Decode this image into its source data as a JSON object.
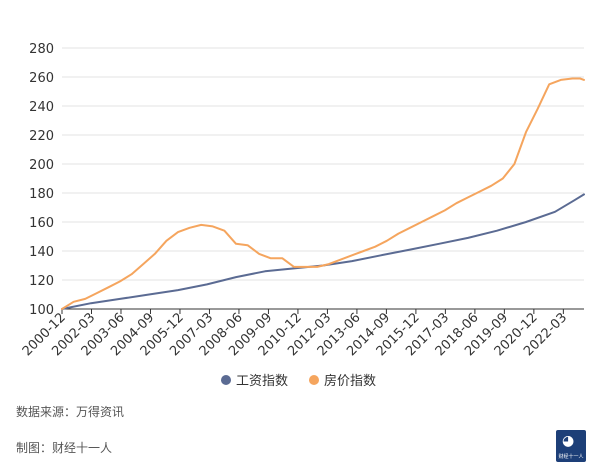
{
  "chart_data": {
    "type": "line",
    "title": "",
    "xlabel": "",
    "ylabel": "",
    "ylim": [
      100,
      280
    ],
    "yticks": [
      100,
      120,
      140,
      160,
      180,
      200,
      220,
      240,
      260,
      280
    ],
    "grid": true,
    "legend_position": "bottom-center",
    "x_tick_labels": [
      "2000-12",
      "2002-03",
      "2003-06",
      "2004-09",
      "2005-12",
      "2007-03",
      "2008-06",
      "2009-09",
      "2010-12",
      "2012-03",
      "2013-06",
      "2014-09",
      "2015-12",
      "2017-03",
      "2018-06",
      "2019-09",
      "2020-12",
      "2022-03"
    ],
    "x_range": [
      0,
      270
    ],
    "series": [
      {
        "name": "工资指数",
        "color": "#5b6b93",
        "x": [
          0,
          15,
          30,
          45,
          60,
          75,
          90,
          105,
          120,
          135,
          150,
          165,
          180,
          195,
          210,
          225,
          240,
          255,
          265,
          270
        ],
        "values": [
          100,
          104,
          107,
          110,
          113,
          117,
          122,
          126,
          128,
          130,
          133,
          137,
          141,
          145,
          149,
          154,
          160,
          167,
          175,
          179
        ]
      },
      {
        "name": "房价指数",
        "color": "#f5a55e",
        "x": [
          0,
          6,
          12,
          18,
          24,
          30,
          36,
          42,
          48,
          54,
          60,
          66,
          72,
          78,
          84,
          90,
          96,
          102,
          108,
          114,
          120,
          126,
          132,
          138,
          144,
          150,
          156,
          162,
          168,
          174,
          180,
          186,
          192,
          198,
          204,
          210,
          216,
          222,
          228,
          234,
          240,
          246,
          252,
          258,
          264,
          268,
          270
        ],
        "values": [
          100,
          105,
          107,
          111,
          115,
          119,
          124,
          131,
          138,
          147,
          153,
          156,
          158,
          157,
          154,
          145,
          144,
          138,
          135,
          135,
          129,
          129,
          129,
          131,
          134,
          137,
          140,
          143,
          147,
          152,
          156,
          160,
          164,
          168,
          173,
          177,
          181,
          185,
          190,
          200,
          222,
          238,
          255,
          258,
          259,
          259,
          258
        ]
      }
    ]
  },
  "legend": {
    "items": [
      {
        "label": "工资指数",
        "color": "#5b6b93"
      },
      {
        "label": "房价指数",
        "color": "#f5a55e"
      }
    ]
  },
  "footer": {
    "source": "数据来源：万得资讯",
    "maker": "制图：财经十一人"
  },
  "logo": {
    "caption": "财经十一人"
  }
}
